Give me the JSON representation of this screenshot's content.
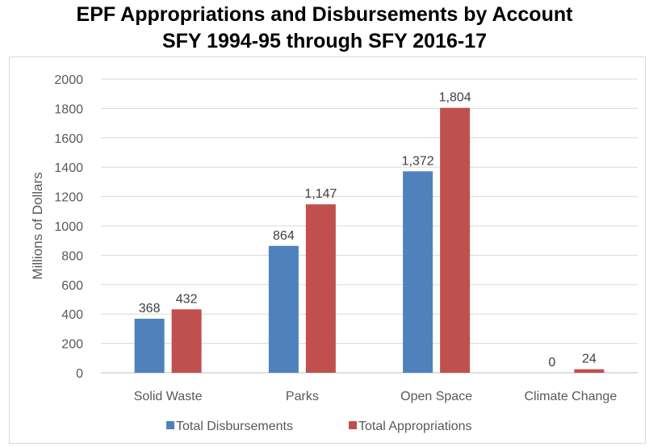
{
  "chart_data": {
    "type": "bar",
    "title_line1": "EPF Appropriations and Disbursements by Account",
    "title_line2": "SFY 1994-95 through SFY 2016-17",
    "xlabel": "",
    "ylabel": "Millions of Dollars",
    "ylim": [
      0,
      2000
    ],
    "yticks": [
      0,
      200,
      400,
      600,
      800,
      1000,
      1200,
      1400,
      1600,
      1800,
      2000
    ],
    "grid": true,
    "legend_position": "bottom",
    "categories": [
      "Solid Waste",
      "Parks",
      "Open Space",
      "Climate Change"
    ],
    "series": [
      {
        "name": "Total Disbursements",
        "color": "#4f81bd",
        "values": [
          368,
          864,
          1372,
          0
        ],
        "labels": [
          "368",
          "864",
          "1,372",
          "0"
        ]
      },
      {
        "name": "Total Appropriations",
        "color": "#c0504d",
        "values": [
          432,
          1147,
          1804,
          24
        ],
        "labels": [
          "432",
          "1,147",
          "1,804",
          "24"
        ]
      }
    ]
  }
}
